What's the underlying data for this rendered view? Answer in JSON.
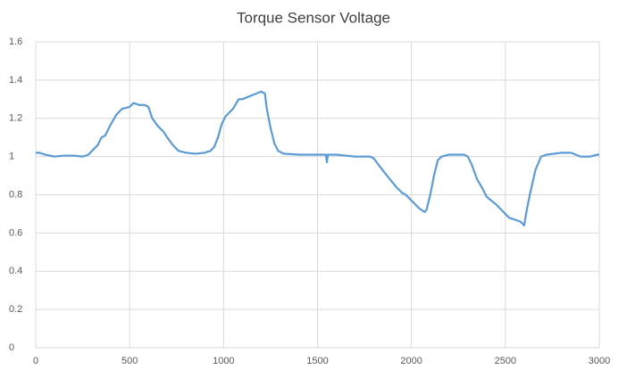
{
  "chart_data": {
    "type": "line",
    "title": "Torque Sensor Voltage",
    "x": [
      0,
      20,
      50,
      100,
      150,
      200,
      250,
      280,
      300,
      330,
      350,
      370,
      400,
      430,
      460,
      500,
      520,
      550,
      580,
      600,
      620,
      650,
      680,
      700,
      730,
      760,
      800,
      850,
      900,
      930,
      950,
      970,
      990,
      1010,
      1050,
      1080,
      1100,
      1150,
      1200,
      1220,
      1230,
      1250,
      1270,
      1290,
      1320,
      1400,
      1500,
      1545,
      1550,
      1555,
      1600,
      1700,
      1780,
      1800,
      1830,
      1870,
      1920,
      1950,
      1970,
      2000,
      2040,
      2070,
      2080,
      2100,
      2120,
      2140,
      2160,
      2200,
      2250,
      2280,
      2300,
      2320,
      2350,
      2380,
      2400,
      2450,
      2500,
      2520,
      2550,
      2580,
      2600,
      2610,
      2630,
      2660,
      2690,
      2720,
      2800,
      2850,
      2900,
      2950,
      2990,
      3000
    ],
    "values": [
      1.02,
      1.02,
      1.01,
      1.0,
      1.005,
      1.005,
      1.0,
      1.01,
      1.03,
      1.06,
      1.1,
      1.11,
      1.17,
      1.22,
      1.25,
      1.26,
      1.28,
      1.27,
      1.27,
      1.26,
      1.2,
      1.16,
      1.13,
      1.1,
      1.06,
      1.03,
      1.02,
      1.015,
      1.02,
      1.03,
      1.05,
      1.1,
      1.17,
      1.21,
      1.25,
      1.3,
      1.3,
      1.32,
      1.34,
      1.33,
      1.25,
      1.15,
      1.07,
      1.03,
      1.015,
      1.01,
      1.01,
      1.01,
      0.97,
      1.01,
      1.01,
      1.0,
      1.0,
      0.99,
      0.95,
      0.9,
      0.84,
      0.81,
      0.8,
      0.77,
      0.73,
      0.71,
      0.72,
      0.8,
      0.9,
      0.98,
      1.0,
      1.01,
      1.01,
      1.01,
      1.0,
      0.96,
      0.88,
      0.83,
      0.79,
      0.75,
      0.7,
      0.68,
      0.67,
      0.66,
      0.64,
      0.7,
      0.8,
      0.93,
      1.0,
      1.01,
      1.02,
      1.02,
      1.0,
      1.0,
      1.01,
      1.01
    ],
    "color": "#5b9bd5",
    "xlim": [
      0,
      3000
    ],
    "xticks": [
      0,
      500,
      1000,
      1500,
      2000,
      2500,
      3000
    ],
    "ylim": [
      0,
      1.6
    ],
    "yticks": [
      0,
      0.2,
      0.4,
      0.6,
      0.8,
      1,
      1.2,
      1.4,
      1.6
    ],
    "grid": true
  }
}
